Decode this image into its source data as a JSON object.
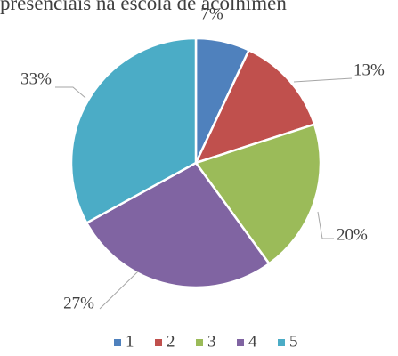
{
  "chart_data": {
    "type": "pie",
    "title": "presenciais na escola de acolhimen",
    "categories": [
      "1",
      "2",
      "3",
      "4",
      "5"
    ],
    "values": [
      7,
      13,
      20,
      27,
      33
    ],
    "value_labels": [
      "7%",
      "13%",
      "20%",
      "27%",
      "33%"
    ],
    "colors": [
      "#4f81bd",
      "#c0504d",
      "#9bbb59",
      "#8064a2",
      "#4bacc6"
    ],
    "legend": "bottom"
  }
}
